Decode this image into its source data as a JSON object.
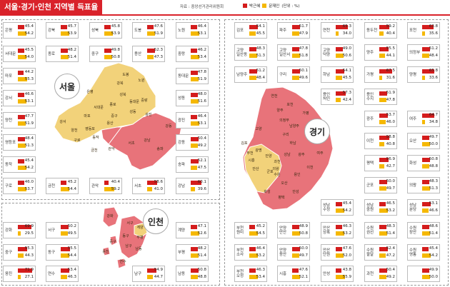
{
  "title": "서울·경기·인천 지역별 득표율",
  "source": "자료 : 중앙선거관리위원회",
  "legend": {
    "candidate1": "박근혜",
    "candidate2": "문재인",
    "unit": "(단위 : %)"
  },
  "colors": {
    "red": "#d41c1c",
    "yellow": "#f5b800",
    "map_red": "#e8737a",
    "map_yellow": "#f2d27a"
  },
  "regions": {
    "seoul": "서울",
    "gyeonggi": "경기",
    "incheon": "인천"
  },
  "seoul": [
    {
      "name": "은평",
      "v1": "45.4",
      "v2": "54.2"
    },
    {
      "name": "강북",
      "v1": "45.7",
      "v2": "53.9"
    },
    {
      "name": "성북",
      "v1": "45.8",
      "v2": "53.9"
    },
    {
      "name": "도봉",
      "v1": "47.6",
      "v2": "51.9"
    },
    {
      "name": "노원",
      "v1": "46.4",
      "v2": "53.1"
    },
    {
      "name": "서대문",
      "v1": "45.5",
      "v2": "54.0"
    },
    {
      "name": "종로",
      "v1": "48.2",
      "v2": "51.4"
    },
    {
      "name": "중구",
      "v1": "49.8",
      "v2": "50.8"
    },
    {
      "name": "용산",
      "v1": "52.3",
      "v2": "47.3"
    },
    {
      "name": "중랑",
      "v1": "46.2",
      "v2": "53.4"
    },
    {
      "name": "마포",
      "v1": "44.2",
      "v2": "55.3"
    },
    {
      "name": "동대문",
      "v1": "47.8",
      "v2": "51.9"
    },
    {
      "name": "강서",
      "v1": "46.6",
      "v2": "53.1"
    },
    {
      "name": "성동",
      "v1": "48.0",
      "v2": "51.6"
    },
    {
      "name": "양천",
      "v1": "47.7",
      "v2": "51.9"
    },
    {
      "name": "광진",
      "v1": "46.4",
      "v2": "53.1"
    },
    {
      "name": "영등포",
      "v1": "48.4",
      "v2": "51.3"
    },
    {
      "name": "강동",
      "v1": "50.4",
      "v2": "49.2"
    },
    {
      "name": "동작",
      "v1": "45.4",
      "v2": "54.2"
    },
    {
      "name": "송파",
      "v1": "52.1",
      "v2": "47.5"
    },
    {
      "name": "구로",
      "v1": "46.0",
      "v2": "53.7"
    },
    {
      "name": "금천",
      "v1": "45.2",
      "v2": "54.4"
    },
    {
      "name": "관악",
      "v1": "40.4",
      "v2": "59.2"
    },
    {
      "name": "서초",
      "v1": "58.6",
      "v2": "41.0"
    },
    {
      "name": "강남",
      "v1": "60.1",
      "v2": "39.6"
    }
  ],
  "incheon": [
    {
      "name": "강화",
      "v1": "69.9",
      "v2": "29.5"
    },
    {
      "name": "서구",
      "v1": "50.2",
      "v2": "49.5"
    },
    {
      "name": "계양",
      "v1": "47.1",
      "v2": "52.6"
    },
    {
      "name": "중구",
      "v1": "55.3",
      "v2": "44.3"
    },
    {
      "name": "동구",
      "v1": "55.5",
      "v2": "54.4"
    },
    {
      "name": "부평",
      "v1": "48.2",
      "v2": "51.4"
    },
    {
      "name": "옹진",
      "v1": "71.9",
      "v2": "27.1"
    },
    {
      "name": "연수",
      "v1": "53.4",
      "v2": "46.3"
    },
    {
      "name": "남구",
      "v1": "54.9",
      "v2": "44.7"
    },
    {
      "name": "남동",
      "v1": "50.8",
      "v2": "48.8"
    }
  ],
  "gyeonggi": [
    {
      "name": "김포",
      "v1": "54.1",
      "v2": "45.5"
    },
    {
      "name": "파주",
      "v1": "51.7",
      "v2": "47.9"
    },
    {
      "name": "연천",
      "v1": "65.3",
      "v2": "34.0"
    },
    {
      "name": "동두천",
      "v1": "59.2",
      "v2": "40.4"
    },
    {
      "name": "포천",
      "v1": "63.8",
      "v2": "35.6"
    },
    {
      "name": "고양\n일산동",
      "v1": "48.3",
      "v2": "51.3"
    },
    {
      "name": "고양\n일산서",
      "v1": "47.8",
      "v2": "51.8"
    },
    {
      "name": "고양\n덕양",
      "v1": "49.0",
      "v2": "50.6"
    },
    {
      "name": "양주",
      "v1": "55.5",
      "v2": "44.1"
    },
    {
      "name": "의정부",
      "v1": "51.2",
      "v2": "48.4"
    },
    {
      "name": "남양주",
      "v1": "51.2",
      "v2": "48.4"
    },
    {
      "name": "구리",
      "v1": "50.1",
      "v2": "49.6"
    },
    {
      "name": "하남",
      "v1": "54.1",
      "v2": "45.5"
    },
    {
      "name": "가평",
      "v1": "67.5",
      "v2": "31.6"
    },
    {
      "name": "양평",
      "v1": "65.8",
      "v2": "33.6"
    },
    {
      "name": "용인\n처인",
      "v1": "57.3",
      "v2": "42.4"
    },
    {
      "name": "용인\n수지",
      "v1": "51.9",
      "v2": "47.8"
    },
    {
      "name": "광주",
      "v1": "53.7",
      "v2": "46.0"
    },
    {
      "name": "여주",
      "v1": "64.7",
      "v2": "34.8"
    },
    {
      "name": "이천",
      "v1": "58.8",
      "v2": "40.8"
    },
    {
      "name": "오산",
      "v1": "49.7",
      "v2": "50.0"
    },
    {
      "name": "평택",
      "v1": "56.9",
      "v2": "42.7"
    },
    {
      "name": "화성",
      "v1": "50.8",
      "v2": "48.8"
    },
    {
      "name": "군포",
      "v1": "50.0",
      "v2": "49.7"
    },
    {
      "name": "의왕",
      "v1": "48.3",
      "v2": "51.3"
    },
    {
      "name": "성남\n수정",
      "v1": "45.4",
      "v2": "54.2"
    },
    {
      "name": "성남\n중원",
      "v1": "46.5",
      "v2": "53.2"
    },
    {
      "name": "성남\n분당",
      "v1": "53.1",
      "v2": "46.6"
    },
    {
      "name": "부천\n원미",
      "v1": "45.2",
      "v2": "54.5"
    },
    {
      "name": "안양\n만안",
      "v1": "48.9",
      "v2": "50.8"
    },
    {
      "name": "안산\n상록",
      "v1": "46.3",
      "v2": "53.2"
    },
    {
      "name": "수원\n권선",
      "v1": "48.3",
      "v2": "51.4"
    },
    {
      "name": "수원\n장안",
      "v1": "48.6",
      "v2": "51.4"
    },
    {
      "name": "부천\n소사",
      "v1": "46.4",
      "v2": "53.2"
    },
    {
      "name": "안양\n동안",
      "v1": "50.0",
      "v2": "49.7"
    },
    {
      "name": "안산\n단원",
      "v1": "47.6",
      "v2": "52.0"
    },
    {
      "name": "수원\n팔달",
      "v1": "52.4",
      "v2": "47.2"
    },
    {
      "name": "수원\n영통",
      "v1": "45.4",
      "v2": "54.2"
    },
    {
      "name": "부천\n오정",
      "v1": "46.3",
      "v2": "53.4"
    },
    {
      "name": "시흥",
      "v1": "47.6",
      "v2": "52.1"
    },
    {
      "name": "안성",
      "v1": "43.8",
      "v2": "55.9"
    },
    {
      "name": "과천",
      "v1": "50.4",
      "v2": "49.2"
    },
    {
      "name": "",
      "v1": "49.9",
      "v2": "50.0"
    }
  ],
  "map_labels": {
    "seoul": [
      "도봉",
      "노원",
      "강북",
      "은평",
      "성북",
      "종로",
      "동대문",
      "서대문",
      "마포",
      "중구",
      "성동",
      "용산",
      "광진",
      "강서",
      "양천",
      "영등포",
      "구로",
      "동작",
      "강동",
      "금천",
      "관악",
      "서초",
      "강남",
      "송파",
      "중랑"
    ],
    "gyeonggi": [
      "연천",
      "포천",
      "양주",
      "의정부",
      "가평",
      "고양",
      "남양주",
      "구리",
      "하남",
      "양평",
      "광명",
      "안양",
      "과천",
      "성남",
      "광주",
      "여주",
      "이천",
      "용인",
      "안성",
      "평택",
      "화성",
      "오산",
      "수원",
      "군포",
      "의왕",
      "안산",
      "시흥",
      "부천",
      "김포"
    ],
    "incheon": [
      "강화",
      "서구",
      "계양",
      "부평",
      "남동",
      "동구",
      "남구",
      "중구",
      "연수",
      "옹진"
    ]
  }
}
